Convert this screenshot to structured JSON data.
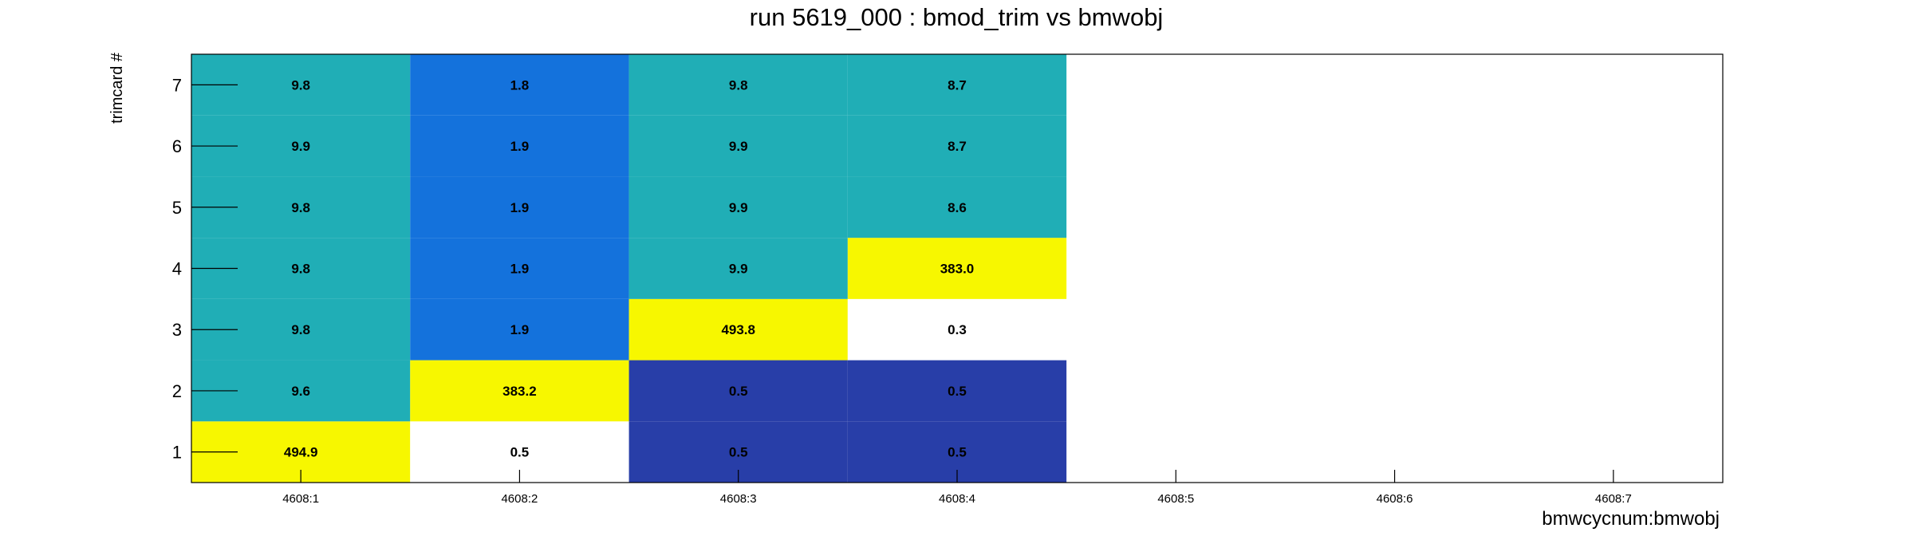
{
  "chart_data": {
    "type": "heatmap",
    "title": "run 5619_000 : bmod_trim vs bmwobj",
    "xlabel": "bmwcycnum:bmwobj",
    "ylabel": "trimcard #",
    "x_categories": [
      "4608:1",
      "4608:2",
      "4608:3",
      "4608:4",
      "4608:5",
      "4608:6",
      "4608:7"
    ],
    "y_categories": [
      "1",
      "2",
      "3",
      "4",
      "5",
      "6",
      "7"
    ],
    "cells": [
      {
        "x": "4608:1",
        "y": "1",
        "value": "494.9",
        "color": "#f7f700"
      },
      {
        "x": "4608:1",
        "y": "2",
        "value": "9.6",
        "color": "#20aeb6"
      },
      {
        "x": "4608:1",
        "y": "3",
        "value": "9.8",
        "color": "#20aeb6"
      },
      {
        "x": "4608:1",
        "y": "4",
        "value": "9.8",
        "color": "#20aeb6"
      },
      {
        "x": "4608:1",
        "y": "5",
        "value": "9.8",
        "color": "#20aeb6"
      },
      {
        "x": "4608:1",
        "y": "6",
        "value": "9.9",
        "color": "#20aeb6"
      },
      {
        "x": "4608:1",
        "y": "7",
        "value": "9.8",
        "color": "#20aeb6"
      },
      {
        "x": "4608:2",
        "y": "1",
        "value": "0.5",
        "color": "#ffffff"
      },
      {
        "x": "4608:2",
        "y": "2",
        "value": "383.2",
        "color": "#f7f700"
      },
      {
        "x": "4608:2",
        "y": "3",
        "value": "1.9",
        "color": "#1472dc"
      },
      {
        "x": "4608:2",
        "y": "4",
        "value": "1.9",
        "color": "#1472dc"
      },
      {
        "x": "4608:2",
        "y": "5",
        "value": "1.9",
        "color": "#1472dc"
      },
      {
        "x": "4608:2",
        "y": "6",
        "value": "1.9",
        "color": "#1472dc"
      },
      {
        "x": "4608:2",
        "y": "7",
        "value": "1.8",
        "color": "#1472dc"
      },
      {
        "x": "4608:3",
        "y": "1",
        "value": "0.5",
        "color": "#283ea8"
      },
      {
        "x": "4608:3",
        "y": "2",
        "value": "0.5",
        "color": "#283ea8"
      },
      {
        "x": "4608:3",
        "y": "3",
        "value": "493.8",
        "color": "#f7f700"
      },
      {
        "x": "4608:3",
        "y": "4",
        "value": "9.9",
        "color": "#20aeb6"
      },
      {
        "x": "4608:3",
        "y": "5",
        "value": "9.9",
        "color": "#20aeb6"
      },
      {
        "x": "4608:3",
        "y": "6",
        "value": "9.9",
        "color": "#20aeb6"
      },
      {
        "x": "4608:3",
        "y": "7",
        "value": "9.8",
        "color": "#20aeb6"
      },
      {
        "x": "4608:4",
        "y": "1",
        "value": "0.5",
        "color": "#283ea8"
      },
      {
        "x": "4608:4",
        "y": "2",
        "value": "0.5",
        "color": "#283ea8"
      },
      {
        "x": "4608:4",
        "y": "3",
        "value": "0.3",
        "color": "#ffffff"
      },
      {
        "x": "4608:4",
        "y": "4",
        "value": "383.0",
        "color": "#f7f700"
      },
      {
        "x": "4608:4",
        "y": "5",
        "value": "8.6",
        "color": "#20aeb6"
      },
      {
        "x": "4608:4",
        "y": "6",
        "value": "8.7",
        "color": "#20aeb6"
      },
      {
        "x": "4608:4",
        "y": "7",
        "value": "8.7",
        "color": "#20aeb6"
      }
    ],
    "legend": "none",
    "grid": false
  }
}
